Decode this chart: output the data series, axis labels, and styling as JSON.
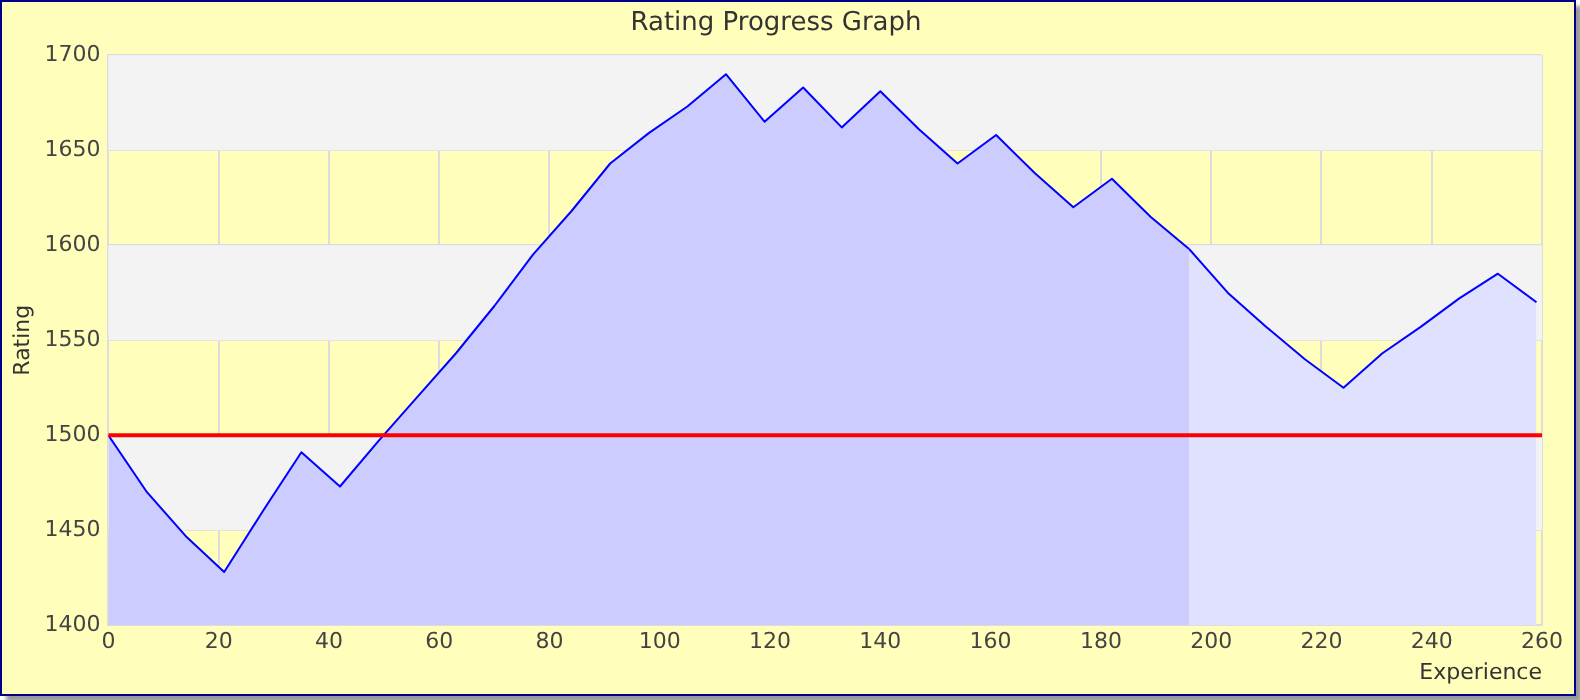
{
  "chart_data": {
    "type": "area",
    "title": "Rating Progress Graph",
    "xlabel": "Experience",
    "ylabel": "Rating",
    "series": [
      {
        "color": "#ccccff",
        "x": [
          0,
          7,
          14,
          21,
          28,
          35,
          42,
          49,
          56,
          63,
          70,
          77,
          84,
          91,
          98,
          105,
          112,
          119,
          126,
          133,
          140,
          147,
          154,
          161,
          168,
          175,
          182,
          189,
          196
        ],
        "values": [
          1500,
          1470,
          1447,
          1428,
          1460,
          1491,
          1473,
          1497,
          1520,
          1543,
          1568,
          1595,
          1618,
          1643,
          1659,
          1673,
          1690,
          1665,
          1683,
          1662,
          1681,
          1661,
          1643,
          1658,
          1638,
          1620,
          1635,
          1615,
          1598
        ]
      },
      {
        "color": "#e0e0ff",
        "x": [
          196,
          203,
          210,
          217,
          224,
          231,
          238,
          245,
          252,
          259
        ],
        "values": [
          1598,
          1575,
          1557,
          1540,
          1525,
          1543,
          1557,
          1572,
          1585,
          1570
        ]
      }
    ],
    "xlim": [
      0,
      260
    ],
    "xticks": [
      0,
      20,
      40,
      60,
      80,
      100,
      120,
      140,
      160,
      180,
      200,
      220,
      240,
      260
    ],
    "ylim": [
      1400,
      1700
    ],
    "yticks": [
      1400,
      1450,
      1500,
      1550,
      1600,
      1650,
      1700
    ],
    "ref_lines": [
      {
        "axis": "y",
        "value": 1500,
        "color": "#ff0000"
      }
    ],
    "grid": true,
    "legend": false
  }
}
